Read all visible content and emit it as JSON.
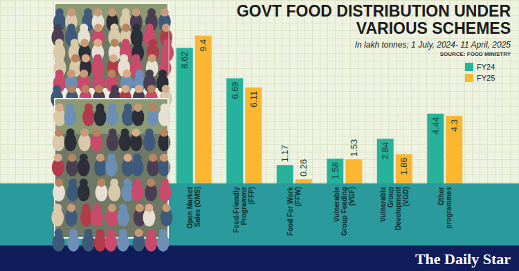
{
  "chart_data": {
    "type": "bar",
    "title": "GOVT FOOD DISTRIBUTION UNDER VARIOUS SCHEMES",
    "subtitle": "In lakh tonnes; 1 July, 2024- 11 April, 2025",
    "annotations": [
      "SOURCE: FOOD MINISTRY",
      "The Daily Star"
    ],
    "categories": [
      "Open Market Sales (OMS)",
      "Food-Friendly Programme (FFP)",
      "Food For Work (FFW)",
      "Vulnerable Group Feeding (VGF)",
      "Vulnerable Group Development (VGD)",
      "Other programmes"
    ],
    "series": [
      {
        "name": "FY24",
        "color": "#27b39b",
        "values": [
          8.62,
          6.69,
          1.17,
          1.58,
          2.84,
          4.44
        ]
      },
      {
        "name": "FY25",
        "color": "#fbb731",
        "values": [
          9.4,
          6.11,
          0.26,
          1.53,
          1.86,
          4.3
        ]
      }
    ],
    "ylim": [
      0,
      10
    ],
    "yticks": [],
    "tick_labels": "x",
    "data_labels": true,
    "grid": false,
    "legend": "upper right"
  }
}
